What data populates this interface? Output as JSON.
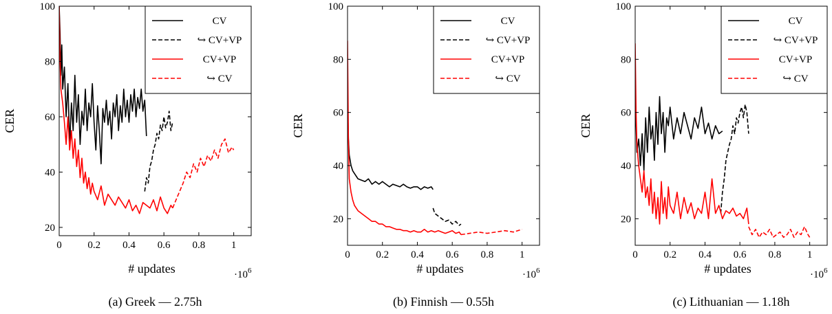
{
  "chart_data": [
    {
      "type": "line",
      "caption": "(a) Greek — 2.75h",
      "xlabel": "# updates",
      "ylabel": "CER",
      "x_multiplier": "·10^6",
      "xlim": [
        0,
        1.1
      ],
      "ylim": [
        17,
        100
      ],
      "xticks": [
        0,
        0.2,
        0.4,
        0.6,
        0.8,
        1
      ],
      "xtick_labels": [
        "0",
        "0.2",
        "0.4",
        "0.6",
        "0.8",
        "1"
      ],
      "yticks": [
        20,
        40,
        60,
        80,
        100
      ],
      "ytick_labels": [
        "20",
        "40",
        "60",
        "80",
        "100"
      ],
      "legend_position": "top-right",
      "series": [
        {
          "name": "CV",
          "color": "#000000",
          "dash": "solid",
          "x": [
            0,
            0.005,
            0.01,
            0.015,
            0.02,
            0.03,
            0.04,
            0.05,
            0.06,
            0.07,
            0.08,
            0.09,
            0.1,
            0.11,
            0.12,
            0.13,
            0.14,
            0.15,
            0.16,
            0.17,
            0.18,
            0.19,
            0.2,
            0.21,
            0.22,
            0.23,
            0.24,
            0.25,
            0.26,
            0.27,
            0.28,
            0.29,
            0.3,
            0.31,
            0.32,
            0.33,
            0.34,
            0.35,
            0.36,
            0.37,
            0.38,
            0.39,
            0.4,
            0.41,
            0.42,
            0.43,
            0.44,
            0.45,
            0.46,
            0.47,
            0.48,
            0.49,
            0.5
          ],
          "y": [
            100,
            90,
            75,
            86,
            70,
            78,
            60,
            72,
            50,
            65,
            55,
            75,
            58,
            68,
            50,
            62,
            57,
            70,
            55,
            65,
            60,
            72,
            58,
            48,
            64,
            55,
            43,
            63,
            58,
            66,
            57,
            62,
            52,
            65,
            60,
            68,
            55,
            64,
            58,
            70,
            60,
            66,
            58,
            68,
            62,
            70,
            60,
            67,
            63,
            70,
            62,
            66,
            53
          ]
        },
        {
          "name": "↪ CV+VP",
          "color": "#000000",
          "dash": "dashed",
          "x": [
            0.49,
            0.5,
            0.51,
            0.52,
            0.53,
            0.54,
            0.55,
            0.56,
            0.57,
            0.58,
            0.59,
            0.6,
            0.61,
            0.62,
            0.63,
            0.64,
            0.65
          ],
          "y": [
            33,
            38,
            36,
            42,
            44,
            48,
            50,
            54,
            52,
            57,
            55,
            60,
            56,
            58,
            62,
            55,
            58
          ]
        },
        {
          "name": "CV+VP",
          "color": "#ff0000",
          "dash": "solid",
          "x": [
            0,
            0.005,
            0.01,
            0.02,
            0.03,
            0.04,
            0.05,
            0.06,
            0.07,
            0.08,
            0.09,
            0.1,
            0.11,
            0.12,
            0.13,
            0.14,
            0.15,
            0.16,
            0.17,
            0.18,
            0.19,
            0.2,
            0.22,
            0.24,
            0.26,
            0.28,
            0.3,
            0.32,
            0.34,
            0.36,
            0.38,
            0.4,
            0.42,
            0.44,
            0.46,
            0.48,
            0.5,
            0.52,
            0.54,
            0.56,
            0.58,
            0.6,
            0.62,
            0.64,
            0.65
          ],
          "y": [
            100,
            80,
            70,
            65,
            58,
            50,
            60,
            48,
            55,
            45,
            52,
            42,
            48,
            38,
            45,
            36,
            40,
            34,
            38,
            32,
            36,
            33,
            30,
            35,
            28,
            32,
            30,
            28,
            31,
            29,
            27,
            30,
            26,
            28,
            25,
            29,
            28,
            27,
            30,
            26,
            31,
            27,
            25,
            28,
            27
          ]
        },
        {
          "name": "↪ CV",
          "color": "#ff0000",
          "dash": "dashed",
          "x": [
            0.65,
            0.67,
            0.69,
            0.71,
            0.73,
            0.75,
            0.77,
            0.79,
            0.81,
            0.83,
            0.85,
            0.87,
            0.89,
            0.91,
            0.93,
            0.95,
            0.97,
            0.99,
            1.0
          ],
          "y": [
            27,
            30,
            33,
            36,
            40,
            38,
            43,
            40,
            45,
            42,
            46,
            44,
            48,
            45,
            50,
            52,
            47,
            49,
            48
          ]
        }
      ]
    },
    {
      "type": "line",
      "caption": "(b) Finnish — 0.55h",
      "xlabel": "# updates",
      "ylabel": "CER",
      "x_multiplier": "·10^6",
      "xlim": [
        0,
        1.1
      ],
      "ylim": [
        10,
        100
      ],
      "xticks": [
        0,
        0.2,
        0.4,
        0.6,
        0.8,
        1
      ],
      "xtick_labels": [
        "0",
        "0.2",
        "0.4",
        "0.6",
        "0.8",
        "1"
      ],
      "yticks": [
        20,
        40,
        60,
        80,
        100
      ],
      "ytick_labels": [
        "20",
        "40",
        "60",
        "80",
        "100"
      ],
      "legend_position": "top-right",
      "series": [
        {
          "name": "CV",
          "color": "#000000",
          "dash": "solid",
          "x": [
            0,
            0.005,
            0.01,
            0.02,
            0.03,
            0.04,
            0.05,
            0.06,
            0.08,
            0.1,
            0.12,
            0.14,
            0.16,
            0.18,
            0.2,
            0.22,
            0.24,
            0.26,
            0.28,
            0.3,
            0.32,
            0.34,
            0.36,
            0.38,
            0.4,
            0.42,
            0.44,
            0.46,
            0.48,
            0.49
          ],
          "y": [
            64,
            50,
            44,
            40,
            38,
            37,
            36,
            35,
            34.5,
            34,
            35,
            33,
            34,
            33,
            34,
            33,
            32,
            33,
            32.5,
            32,
            33,
            32,
            31.5,
            32,
            32,
            31,
            32,
            31.5,
            32,
            31
          ]
        },
        {
          "name": "↪ CV+VP",
          "color": "#000000",
          "dash": "dashed",
          "x": [
            0.49,
            0.5,
            0.52,
            0.54,
            0.56,
            0.58,
            0.6,
            0.62,
            0.64,
            0.65
          ],
          "y": [
            24,
            22,
            21,
            20,
            19,
            19.5,
            18,
            19,
            17.5,
            18
          ]
        },
        {
          "name": "CV+VP",
          "color": "#ff0000",
          "dash": "solid",
          "x": [
            0,
            0.005,
            0.01,
            0.02,
            0.03,
            0.04,
            0.05,
            0.06,
            0.08,
            0.1,
            0.12,
            0.14,
            0.16,
            0.18,
            0.2,
            0.22,
            0.24,
            0.26,
            0.28,
            0.3,
            0.32,
            0.34,
            0.36,
            0.38,
            0.4,
            0.42,
            0.44,
            0.46,
            0.48,
            0.5,
            0.52,
            0.54,
            0.56,
            0.58,
            0.6,
            0.62,
            0.64,
            0.65
          ],
          "y": [
            87,
            50,
            35,
            30,
            27,
            25,
            24,
            23,
            22,
            21,
            20,
            19,
            19,
            18,
            18,
            17,
            17,
            16.5,
            16,
            16,
            15.5,
            15.5,
            15,
            15.5,
            15,
            15,
            16,
            15,
            15.5,
            15,
            15.5,
            15,
            14.5,
            15,
            15.5,
            14.5,
            15,
            14
          ]
        },
        {
          "name": "↪ CV",
          "color": "#ff0000",
          "dash": "dashed",
          "x": [
            0.65,
            0.7,
            0.75,
            0.8,
            0.85,
            0.9,
            0.95,
            1.0
          ],
          "y": [
            14,
            14.5,
            15,
            14.5,
            15,
            15.5,
            15,
            16
          ]
        }
      ]
    },
    {
      "type": "line",
      "caption": "(c) Lithuanian — 1.18h",
      "xlabel": "# updates",
      "ylabel": "CER",
      "x_multiplier": "·10^6",
      "xlim": [
        0,
        1.1
      ],
      "ylim": [
        10,
        100
      ],
      "xticks": [
        0,
        0.2,
        0.4,
        0.6,
        0.8,
        1
      ],
      "xtick_labels": [
        "0",
        "0.2",
        "0.4",
        "0.6",
        "0.8",
        "1"
      ],
      "yticks": [
        20,
        40,
        60,
        80,
        100
      ],
      "ytick_labels": [
        "20",
        "40",
        "60",
        "80",
        "100"
      ],
      "legend_position": "top-right",
      "series": [
        {
          "name": "CV",
          "color": "#000000",
          "dash": "solid",
          "x": [
            0,
            0.005,
            0.01,
            0.02,
            0.03,
            0.04,
            0.05,
            0.06,
            0.07,
            0.08,
            0.09,
            0.1,
            0.11,
            0.12,
            0.13,
            0.14,
            0.15,
            0.16,
            0.17,
            0.18,
            0.19,
            0.2,
            0.22,
            0.24,
            0.26,
            0.28,
            0.3,
            0.32,
            0.34,
            0.36,
            0.38,
            0.4,
            0.42,
            0.44,
            0.46,
            0.48,
            0.5
          ],
          "y": [
            68,
            55,
            45,
            50,
            40,
            52,
            38,
            58,
            45,
            62,
            50,
            55,
            42,
            60,
            48,
            66,
            52,
            60,
            45,
            58,
            55,
            62,
            50,
            58,
            52,
            60,
            55,
            50,
            58,
            54,
            62,
            52,
            56,
            50,
            55,
            52,
            53
          ]
        },
        {
          "name": "↪ CV+VP",
          "color": "#000000",
          "dash": "dashed",
          "x": [
            0.49,
            0.5,
            0.51,
            0.52,
            0.53,
            0.54,
            0.55,
            0.56,
            0.57,
            0.58,
            0.59,
            0.6,
            0.61,
            0.62,
            0.63,
            0.64,
            0.65
          ],
          "y": [
            22,
            30,
            35,
            42,
            45,
            48,
            50,
            55,
            52,
            58,
            56,
            60,
            62,
            58,
            63,
            60,
            52
          ]
        },
        {
          "name": "CV+VP",
          "color": "#ff0000",
          "dash": "solid",
          "x": [
            0,
            0.005,
            0.01,
            0.02,
            0.03,
            0.04,
            0.05,
            0.06,
            0.07,
            0.08,
            0.09,
            0.1,
            0.11,
            0.12,
            0.13,
            0.14,
            0.15,
            0.16,
            0.17,
            0.18,
            0.19,
            0.2,
            0.22,
            0.24,
            0.26,
            0.28,
            0.3,
            0.32,
            0.34,
            0.36,
            0.38,
            0.4,
            0.42,
            0.44,
            0.46,
            0.48,
            0.5,
            0.52,
            0.54,
            0.56,
            0.58,
            0.6,
            0.62,
            0.64,
            0.65
          ],
          "y": [
            86,
            60,
            48,
            40,
            35,
            30,
            38,
            28,
            32,
            25,
            35,
            22,
            30,
            20,
            28,
            18,
            34,
            22,
            28,
            20,
            32,
            25,
            22,
            30,
            20,
            28,
            22,
            26,
            20,
            24,
            22,
            30,
            20,
            35,
            22,
            25,
            20,
            23,
            22,
            24,
            21,
            22,
            20,
            24,
            18
          ]
        },
        {
          "name": "↪ CV",
          "color": "#ff0000",
          "dash": "dashed",
          "x": [
            0.65,
            0.67,
            0.69,
            0.71,
            0.73,
            0.75,
            0.77,
            0.79,
            0.81,
            0.83,
            0.85,
            0.87,
            0.89,
            0.91,
            0.93,
            0.95,
            0.97,
            0.99,
            1.0
          ],
          "y": [
            17,
            14,
            16,
            13,
            15,
            14,
            16,
            13,
            14,
            15,
            13,
            14,
            16,
            13,
            15,
            14,
            17,
            14,
            13
          ]
        }
      ]
    }
  ]
}
